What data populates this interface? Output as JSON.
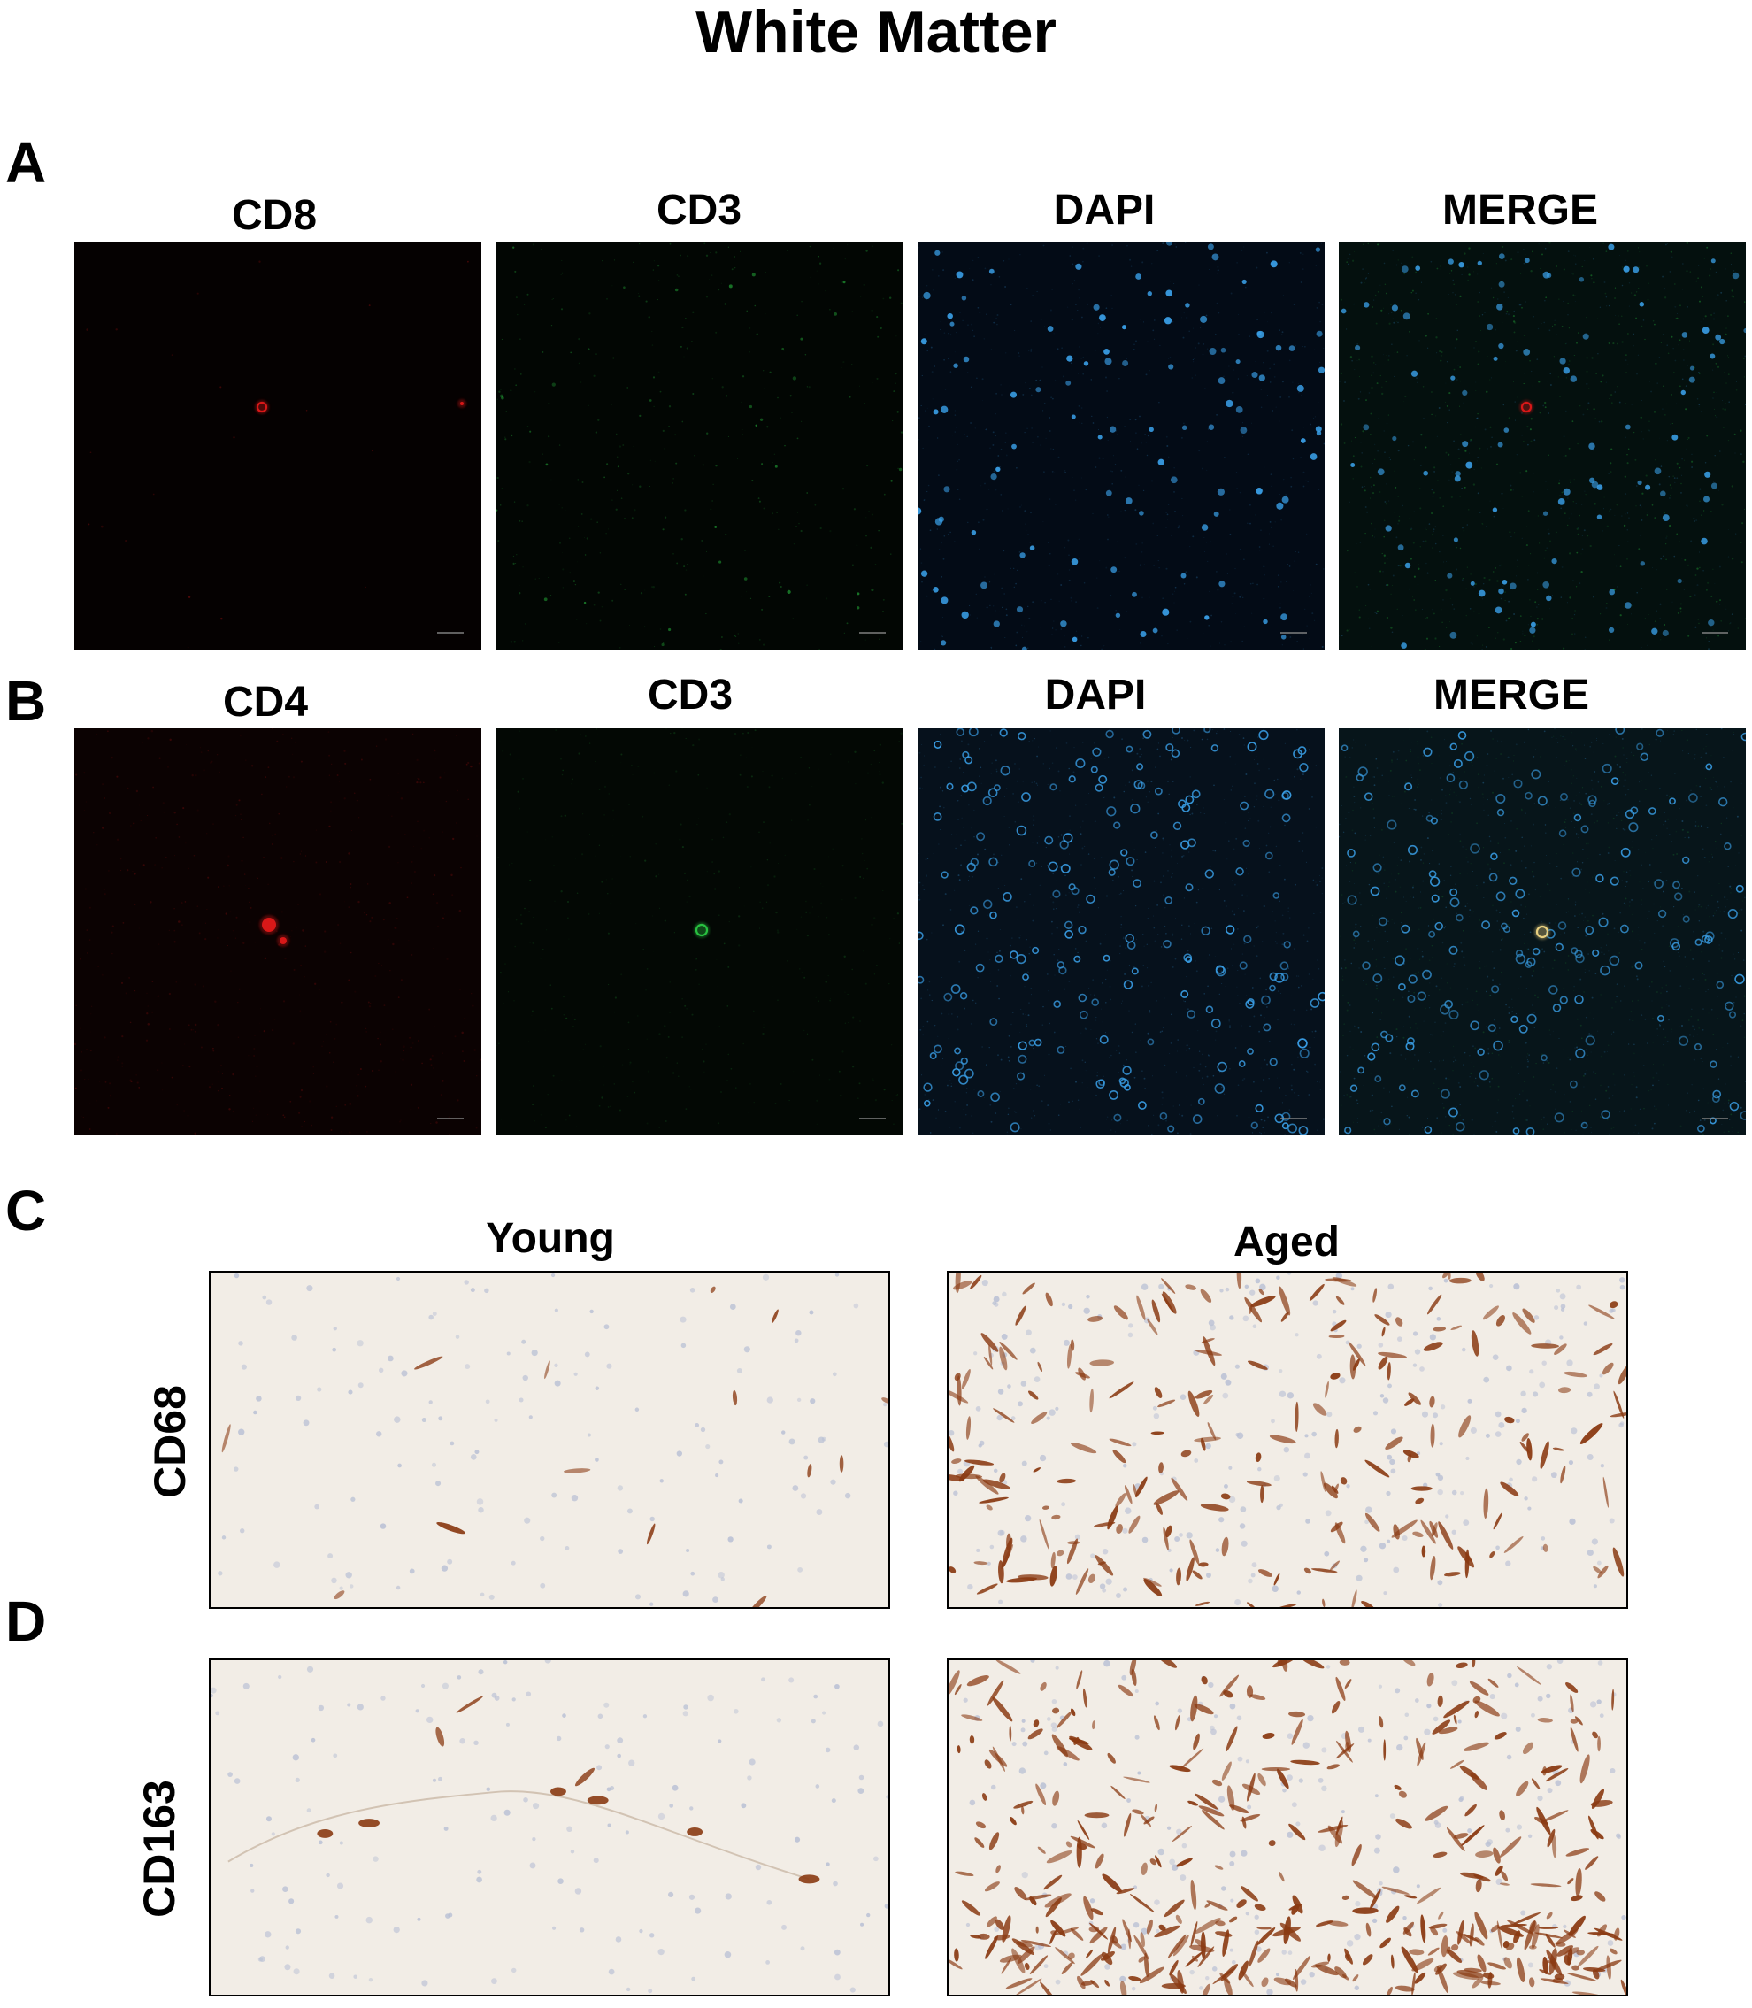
{
  "figure_title": "White Matter",
  "panels": {
    "A": {
      "letter": "A",
      "channels": [
        "CD8",
        "CD3",
        "DAPI",
        "MERGE"
      ]
    },
    "B": {
      "letter": "B",
      "channels": [
        "CD4",
        "CD3",
        "DAPI",
        "MERGE"
      ]
    },
    "C": {
      "letter": "C",
      "marker": "CD68",
      "groups": [
        "Young",
        "Aged"
      ]
    },
    "D": {
      "letter": "D",
      "marker": "CD163"
    }
  },
  "colors": {
    "cd_red": "#d81818",
    "cd3_green": "#28c040",
    "dapi_blue": "#3aa0e8",
    "dab_brown": "#8a3a12",
    "ihc_background": "#f2ede6"
  }
}
